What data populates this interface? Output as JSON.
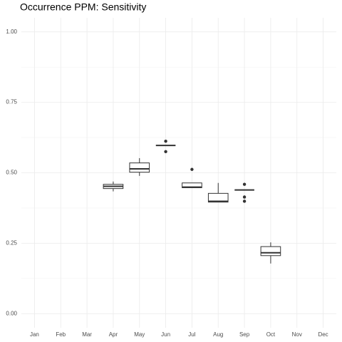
{
  "chart_data": {
    "type": "boxplot",
    "title": "Occurrence PPM: Sensitivity",
    "categories": [
      "Jan",
      "Feb",
      "Mar",
      "Apr",
      "May",
      "Jun",
      "Jul",
      "Aug",
      "Sep",
      "Oct",
      "Nov",
      "Dec"
    ],
    "min": [
      null,
      null,
      null,
      0.434,
      0.489,
      0.597,
      0.447,
      0.396,
      0.439,
      0.178,
      null,
      null
    ],
    "q1": [
      null,
      null,
      null,
      0.444,
      0.502,
      0.597,
      0.447,
      0.396,
      0.439,
      0.206,
      null,
      null
    ],
    "median": [
      null,
      null,
      null,
      0.452,
      0.514,
      0.597,
      0.449,
      0.399,
      0.439,
      0.216,
      null,
      null
    ],
    "q3": [
      null,
      null,
      null,
      0.459,
      0.535,
      0.597,
      0.464,
      0.427,
      0.439,
      0.238,
      null,
      null
    ],
    "max": [
      null,
      null,
      null,
      0.469,
      0.552,
      0.597,
      0.464,
      0.464,
      0.439,
      0.253,
      null,
      null
    ],
    "outliers": [
      [],
      [],
      [],
      [],
      [],
      [
        0.612,
        0.575
      ],
      [
        0.512
      ],
      [],
      [
        0.459,
        0.414,
        0.399
      ],
      [],
      [],
      []
    ],
    "color": "#333333",
    "ylim": [
      -0.05,
      1.05
    ],
    "yticks": [
      {
        "value": 0,
        "label": "0.00"
      },
      0.25,
      {
        "value": 0.5,
        "label": "0.50"
      },
      0.75,
      {
        "value": 1,
        "label": "1.00"
      }
    ],
    "grid": true
  }
}
